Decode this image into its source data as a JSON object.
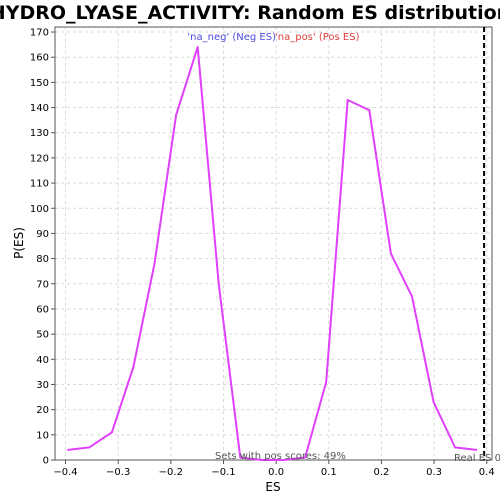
{
  "chart_data": {
    "type": "line",
    "title": "HYDRO_LYASE_ACTIVITY: Random ES distribution",
    "xlabel": "ES",
    "ylabel": "P(ES)",
    "xlim": [
      -0.42,
      0.41
    ],
    "ylim": [
      0,
      172
    ],
    "x_ticks": [
      -0.4,
      -0.3,
      -0.2,
      -0.1,
      0.0,
      0.1,
      0.2,
      0.3,
      0.4
    ],
    "x_tick_labels": [
      "−0.4",
      "−0.3",
      "−0.2",
      "−0.1",
      "0.0",
      "0.1",
      "0.2",
      "0.3",
      "0.4"
    ],
    "y_ticks": [
      0,
      10,
      20,
      30,
      40,
      50,
      60,
      70,
      80,
      90,
      100,
      110,
      120,
      130,
      140,
      150,
      160,
      170
    ],
    "grid": true,
    "series": [
      {
        "color": "#e040fb",
        "x": [
          -0.395,
          -0.355,
          -0.312,
          -0.271,
          -0.231,
          -0.19,
          -0.149,
          -0.109,
          -0.068,
          -0.027,
          0.014,
          0.055,
          0.095,
          0.136,
          0.177,
          0.218,
          0.258,
          0.299,
          0.34,
          0.38
        ],
        "y": [
          4,
          5,
          11,
          37,
          78,
          137,
          164,
          70,
          1,
          0,
          0,
          1,
          31,
          143,
          139,
          82,
          65,
          23,
          5,
          4
        ]
      }
    ],
    "real_es": 0.395,
    "annotations": {
      "neg_label": "'na_neg' (Neg ES)",
      "pos_label": "'na_pos' (Pos ES)",
      "pos_scores": "Sets with pos scores: 49%",
      "real_es_label": "Real ES 0"
    },
    "colors": {
      "line": "#e040fb",
      "neg_text": "#4b4bdc",
      "pos_text": "#e03c3c",
      "grid": "#d9d9d9",
      "real_es": "#000000"
    }
  }
}
